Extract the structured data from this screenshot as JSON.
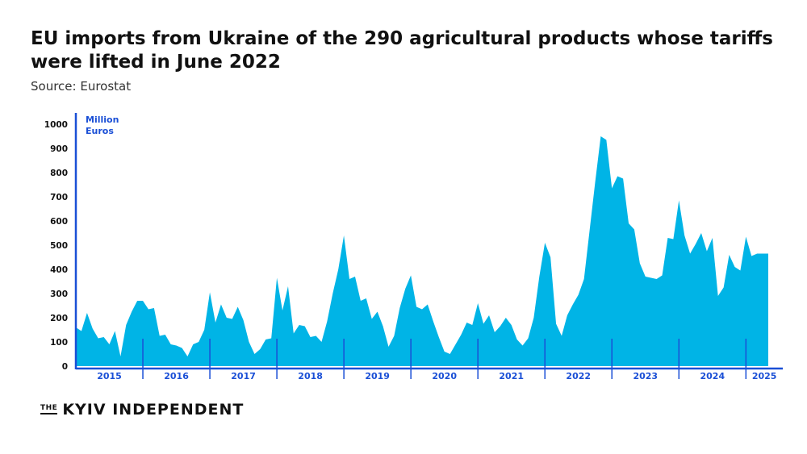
{
  "header": {
    "title": "EU imports from Ukraine of the 290 agricultural products whose tariffs were lifted in June 2022",
    "source": "Source: Eurostat"
  },
  "footer": {
    "logo_prefix": "THE",
    "logo_name": "KYIV INDEPENDENT"
  },
  "colors": {
    "area": "#00b4e6",
    "axis": "#1a4fd6",
    "text": "#111111"
  },
  "chart_data": {
    "type": "area",
    "ylabel": "Million Euros",
    "ylim": [
      0,
      1000
    ],
    "yticks": [
      0,
      100,
      200,
      300,
      400,
      500,
      600,
      700,
      800,
      900,
      1000
    ],
    "x_start": "2015-01",
    "years": [
      "2015",
      "2016",
      "2017",
      "2018",
      "2019",
      "2020",
      "2021",
      "2022",
      "2023",
      "2024",
      "2025"
    ],
    "x": [
      "2015-01",
      "2015-02",
      "2015-03",
      "2015-04",
      "2015-05",
      "2015-06",
      "2015-07",
      "2015-08",
      "2015-09",
      "2015-10",
      "2015-11",
      "2015-12",
      "2016-01",
      "2016-02",
      "2016-03",
      "2016-04",
      "2016-05",
      "2016-06",
      "2016-07",
      "2016-08",
      "2016-09",
      "2016-10",
      "2016-11",
      "2016-12",
      "2017-01",
      "2017-02",
      "2017-03",
      "2017-04",
      "2017-05",
      "2017-06",
      "2017-07",
      "2017-08",
      "2017-09",
      "2017-10",
      "2017-11",
      "2017-12",
      "2018-01",
      "2018-02",
      "2018-03",
      "2018-04",
      "2018-05",
      "2018-06",
      "2018-07",
      "2018-08",
      "2018-09",
      "2018-10",
      "2018-11",
      "2018-12",
      "2019-01",
      "2019-02",
      "2019-03",
      "2019-04",
      "2019-05",
      "2019-06",
      "2019-07",
      "2019-08",
      "2019-09",
      "2019-10",
      "2019-11",
      "2019-12",
      "2020-01",
      "2020-02",
      "2020-03",
      "2020-04",
      "2020-05",
      "2020-06",
      "2020-07",
      "2020-08",
      "2020-09",
      "2020-10",
      "2020-11",
      "2020-12",
      "2021-01",
      "2021-02",
      "2021-03",
      "2021-04",
      "2021-05",
      "2021-06",
      "2021-07",
      "2021-08",
      "2021-09",
      "2021-10",
      "2021-11",
      "2021-12",
      "2022-01",
      "2022-02",
      "2022-03",
      "2022-04",
      "2022-05",
      "2022-06",
      "2022-07",
      "2022-08",
      "2022-09",
      "2022-10",
      "2022-11",
      "2022-12",
      "2023-01",
      "2023-02",
      "2023-03",
      "2023-04",
      "2023-05",
      "2023-06",
      "2023-07",
      "2023-08",
      "2023-09",
      "2023-10",
      "2023-11",
      "2023-12",
      "2024-01",
      "2024-02",
      "2024-03",
      "2024-04",
      "2024-05",
      "2024-06",
      "2024-07",
      "2024-08",
      "2024-09",
      "2024-10",
      "2024-11",
      "2024-12",
      "2025-01",
      "2025-02",
      "2025-03",
      "2025-04",
      "2025-05"
    ],
    "values": [
      160,
      145,
      220,
      155,
      115,
      120,
      90,
      145,
      40,
      170,
      225,
      270,
      270,
      235,
      240,
      125,
      130,
      90,
      85,
      75,
      40,
      90,
      100,
      150,
      305,
      180,
      255,
      200,
      195,
      245,
      190,
      100,
      50,
      70,
      110,
      115,
      365,
      230,
      330,
      135,
      170,
      165,
      120,
      125,
      100,
      185,
      300,
      400,
      540,
      360,
      370,
      270,
      280,
      195,
      225,
      165,
      80,
      125,
      240,
      320,
      375,
      245,
      235,
      255,
      185,
      120,
      60,
      50,
      90,
      130,
      180,
      170,
      260,
      175,
      210,
      140,
      165,
      200,
      170,
      110,
      85,
      115,
      200,
      370,
      510,
      450,
      175,
      125,
      210,
      255,
      295,
      360,
      560,
      760,
      950,
      935,
      735,
      785,
      775,
      590,
      565,
      425,
      370,
      365,
      360,
      375,
      530,
      525,
      685,
      540,
      465,
      505,
      550,
      475,
      530,
      290,
      325,
      460,
      410,
      395,
      535,
      455,
      465,
      465,
      465
    ]
  }
}
